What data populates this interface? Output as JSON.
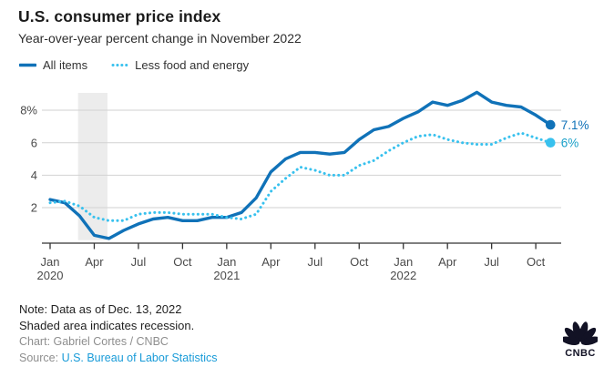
{
  "header": {
    "title": "U.S. consumer price index",
    "subtitle": "Year-over-year percent change in November 2022"
  },
  "legend": {
    "items": [
      {
        "label": "All items",
        "color": "#1072b8",
        "style": "solid"
      },
      {
        "label": "Less food and energy",
        "color": "#38c1ee",
        "style": "dotted"
      }
    ]
  },
  "chart_data": {
    "type": "line",
    "title": "U.S. consumer price index",
    "subtitle": "Year-over-year percent change in November 2022",
    "x_unit": "month",
    "x_range": [
      "2020-01",
      "2022-11"
    ],
    "ylim": [
      0,
      9.3
    ],
    "grid": "horizontal",
    "y_ticks": [
      {
        "value": 2,
        "label": "2"
      },
      {
        "value": 4,
        "label": "4"
      },
      {
        "value": 6,
        "label": "6"
      },
      {
        "value": 8,
        "label": "8%"
      }
    ],
    "x_ticks": [
      {
        "index": 0,
        "label": "Jan",
        "year": "2020"
      },
      {
        "index": 3,
        "label": "Apr"
      },
      {
        "index": 6,
        "label": "Jul"
      },
      {
        "index": 9,
        "label": "Oct"
      },
      {
        "index": 12,
        "label": "Jan",
        "year": "2021"
      },
      {
        "index": 15,
        "label": "Apr"
      },
      {
        "index": 18,
        "label": "Jul"
      },
      {
        "index": 21,
        "label": "Oct"
      },
      {
        "index": 24,
        "label": "Jan",
        "year": "2022"
      },
      {
        "index": 27,
        "label": "Apr"
      },
      {
        "index": 30,
        "label": "Jul"
      },
      {
        "index": 33,
        "label": "Oct"
      }
    ],
    "series": [
      {
        "name": "All items",
        "color": "#1072b8",
        "dash": "solid",
        "end_label": "7.1%",
        "end_label_color": "#1072b8",
        "values": [
          2.5,
          2.3,
          1.5,
          0.3,
          0.1,
          0.6,
          1.0,
          1.3,
          1.4,
          1.2,
          1.2,
          1.4,
          1.4,
          1.7,
          2.6,
          4.2,
          5.0,
          5.4,
          5.4,
          5.3,
          5.4,
          6.2,
          6.8,
          7.0,
          7.5,
          7.9,
          8.5,
          8.3,
          8.6,
          9.1,
          8.5,
          8.3,
          8.2,
          7.7,
          7.1
        ]
      },
      {
        "name": "Less food and energy",
        "color": "#38c1ee",
        "dash": "dotted",
        "end_label": "6%",
        "end_label_color": "#189fc8",
        "values": [
          2.3,
          2.4,
          2.1,
          1.4,
          1.2,
          1.2,
          1.6,
          1.7,
          1.7,
          1.6,
          1.6,
          1.6,
          1.4,
          1.3,
          1.6,
          3.0,
          3.8,
          4.5,
          4.3,
          4.0,
          4.0,
          4.6,
          4.9,
          5.5,
          6.0,
          6.4,
          6.5,
          6.2,
          6.0,
          5.9,
          5.9,
          6.3,
          6.6,
          6.3,
          6.0
        ]
      }
    ],
    "recession_band": {
      "start_index": 1.9,
      "end_index": 3.9,
      "color": "#ececec"
    }
  },
  "notes": {
    "line1": "Note: Data as of Dec. 13, 2022",
    "line2": "Shaded area indicates recession.",
    "credit": "Chart: Gabriel Cortes / CNBC",
    "source_prefix": "Source: ",
    "source_link": "U.S. Bureau of Labor Statistics"
  },
  "branding": {
    "logo_text": "CNBC"
  }
}
